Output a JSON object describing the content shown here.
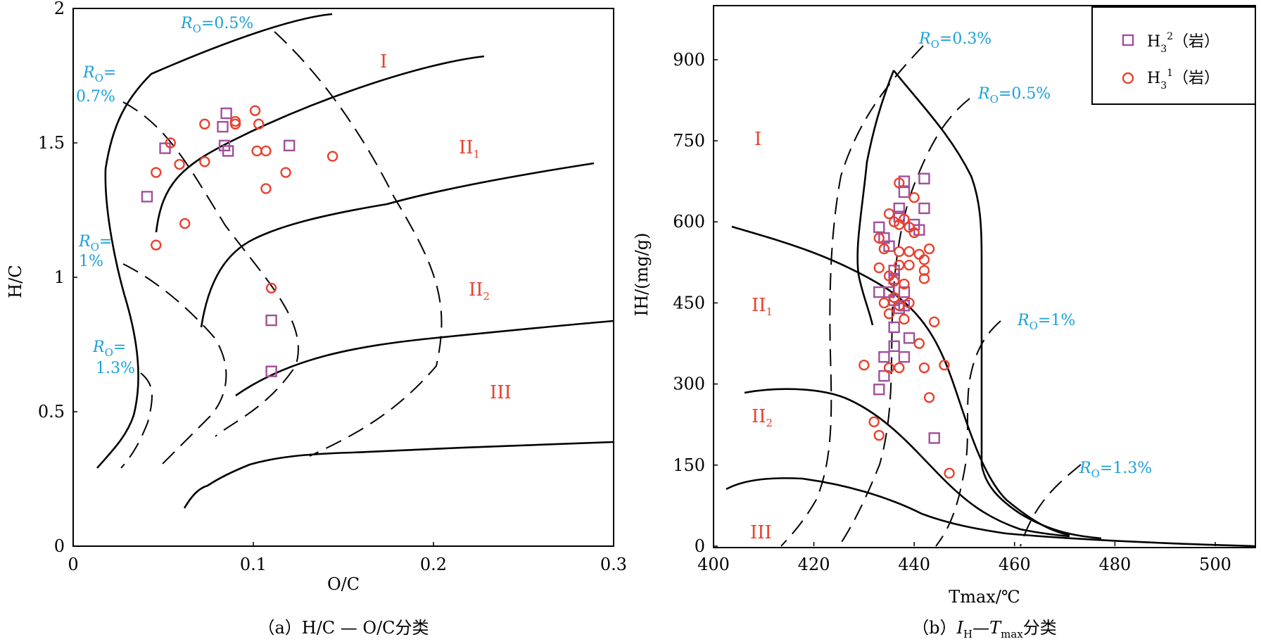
{
  "chart_data": [
    {
      "type": "scatter",
      "caption": "（a）H/C — O/C分类",
      "xlabel": "O/C",
      "ylabel": "H/C",
      "xlim": [
        0,
        0.3
      ],
      "ylim": [
        0,
        2
      ],
      "xticks": [
        "0",
        "0.1",
        "0.2",
        "0.3"
      ],
      "yticks": [
        "0",
        "0.5",
        "1",
        "1.5",
        "2"
      ],
      "ro_labels": [
        "RO=0.5%",
        "RO=0.7%",
        "RO=1%",
        "RO=1.3%"
      ],
      "zone_labels": [
        "I",
        "II1",
        "II2",
        "III"
      ],
      "series": [
        {
          "name": "H3 2（岩）",
          "marker": "square",
          "color": "#a0509a",
          "points": [
            [
              0.041,
              1.3
            ],
            [
              0.051,
              1.48
            ],
            [
              0.083,
              1.56
            ],
            [
              0.085,
              1.61
            ],
            [
              0.084,
              1.49
            ],
            [
              0.086,
              1.47
            ],
            [
              0.12,
              1.49
            ],
            [
              0.11,
              0.84
            ],
            [
              0.11,
              0.65
            ]
          ]
        },
        {
          "name": "H3 1（岩）",
          "marker": "circle",
          "color": "#e8412e",
          "points": [
            [
              0.046,
              1.12
            ],
            [
              0.046,
              1.39
            ],
            [
              0.054,
              1.5
            ],
            [
              0.059,
              1.42
            ],
            [
              0.062,
              1.2
            ],
            [
              0.073,
              1.57
            ],
            [
              0.073,
              1.43
            ],
            [
              0.09,
              1.58
            ],
            [
              0.09,
              1.57
            ],
            [
              0.101,
              1.62
            ],
            [
              0.103,
              1.57
            ],
            [
              0.102,
              1.47
            ],
            [
              0.107,
              1.47
            ],
            [
              0.107,
              1.33
            ],
            [
              0.118,
              1.39
            ],
            [
              0.144,
              1.45
            ],
            [
              0.11,
              0.96
            ]
          ]
        }
      ]
    },
    {
      "type": "scatter",
      "caption": "（b）IH—Tmax分类",
      "xlabel": "Tmax/℃",
      "ylabel": "IH/(mg/g)",
      "xlim": [
        400,
        508
      ],
      "ylim": [
        0,
        1000
      ],
      "xticks": [
        "400",
        "420",
        "440",
        "460",
        "480",
        "500"
      ],
      "yticks": [
        "0",
        "150",
        "300",
        "450",
        "600",
        "750",
        "900"
      ],
      "ro_labels": [
        "RO=0.3%",
        "RO=0.5%",
        "RO=1%",
        "RO=1.3%"
      ],
      "zone_labels": [
        "I",
        "II1",
        "II2",
        "III"
      ],
      "legend": {
        "position": "top-right"
      },
      "series": [
        {
          "name": "H3 2（岩）",
          "marker": "square",
          "color": "#a0509a",
          "points": [
            [
              433,
              590
            ],
            [
              434,
              570
            ],
            [
              435,
              555
            ],
            [
              436,
              510
            ],
            [
              436,
              495
            ],
            [
              435,
              470
            ],
            [
              436,
              455
            ],
            [
              437,
              440
            ],
            [
              433,
              470
            ],
            [
              436,
              405
            ],
            [
              434,
              350
            ],
            [
              436,
              370
            ],
            [
              438,
              350
            ],
            [
              434,
              315
            ],
            [
              433,
              290
            ],
            [
              437,
              625
            ],
            [
              437,
              610
            ],
            [
              438,
              675
            ],
            [
              438,
              655
            ],
            [
              440,
              595
            ],
            [
              441,
              585
            ],
            [
              442,
              680
            ],
            [
              442,
              625
            ],
            [
              438,
              445
            ],
            [
              438,
              470
            ],
            [
              439,
              385
            ],
            [
              444,
              200
            ]
          ]
        },
        {
          "name": "H3 1（岩）",
          "marker": "circle",
          "color": "#e8412e",
          "points": [
            [
              437,
              672
            ],
            [
              440,
              645
            ],
            [
              438,
              605
            ],
            [
              437,
              595
            ],
            [
              439,
              590
            ],
            [
              435,
              615
            ],
            [
              436,
              600
            ],
            [
              433,
              570
            ],
            [
              434,
              550
            ],
            [
              437,
              545
            ],
            [
              439,
              545
            ],
            [
              441,
              540
            ],
            [
              440,
              580
            ],
            [
              443,
              550
            ],
            [
              442,
              530
            ],
            [
              437,
              520
            ],
            [
              439,
              520
            ],
            [
              442,
              510
            ],
            [
              433,
              515
            ],
            [
              435,
              500
            ],
            [
              436,
              490
            ],
            [
              438,
              485
            ],
            [
              442,
              495
            ],
            [
              439,
              450
            ],
            [
              437,
              445
            ],
            [
              434,
              450
            ],
            [
              436,
              460
            ],
            [
              438,
              420
            ],
            [
              435,
              430
            ],
            [
              444,
              415
            ],
            [
              441,
              375
            ],
            [
              446,
              335
            ],
            [
              430,
              335
            ],
            [
              435,
              330
            ],
            [
              437,
              330
            ],
            [
              442,
              330
            ],
            [
              443,
              275
            ],
            [
              432,
              230
            ],
            [
              433,
              205
            ],
            [
              447,
              135
            ]
          ]
        }
      ]
    }
  ],
  "legend": {
    "items": [
      {
        "label": "H3 2（岩）",
        "marker": "square",
        "color": "#a0509a"
      },
      {
        "label": "H3 1（岩）",
        "marker": "circle",
        "color": "#e8412e"
      }
    ]
  },
  "colors": {
    "ro_label": "#1aa0d8",
    "zone_label": "#e8412e",
    "square": "#a0509a",
    "circle": "#e8412e"
  }
}
